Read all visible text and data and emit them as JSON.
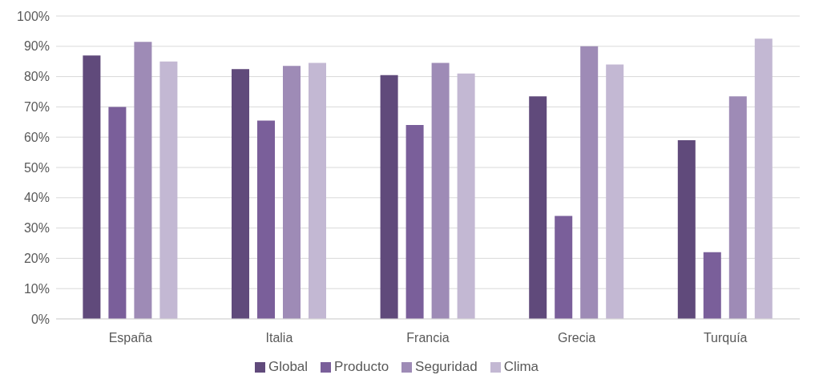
{
  "chart_data": {
    "type": "bar",
    "categories": [
      "España",
      "Italia",
      "Francia",
      "Grecia",
      "Turquía"
    ],
    "series": [
      {
        "name": "Global",
        "color": "#604a7b",
        "values": [
          87,
          82.5,
          80.5,
          73.5,
          59
        ]
      },
      {
        "name": "Producto",
        "color": "#7a5f9a",
        "values": [
          70,
          65.5,
          64,
          34,
          22
        ]
      },
      {
        "name": "Seguridad",
        "color": "#9e8bb6",
        "values": [
          91.5,
          83.5,
          84.5,
          90,
          73.5
        ]
      },
      {
        "name": "Clima",
        "color": "#c3b8d3",
        "values": [
          85,
          84.5,
          81,
          84,
          92.5
        ]
      }
    ],
    "ylim": [
      0,
      100
    ],
    "yticks": [
      {
        "value": 0,
        "label": "0%"
      },
      {
        "value": 10,
        "label": "10%"
      },
      {
        "value": 20,
        "label": "20%"
      },
      {
        "value": 30,
        "label": "30%"
      },
      {
        "value": 40,
        "label": "40%"
      },
      {
        "value": 50,
        "label": "50%"
      },
      {
        "value": 60,
        "label": "60%"
      },
      {
        "value": 70,
        "label": "70%"
      },
      {
        "value": 80,
        "label": "80%"
      },
      {
        "value": 90,
        "label": "90%"
      },
      {
        "value": 100,
        "label": "100%"
      }
    ],
    "grid": "y",
    "legend": "bottom"
  }
}
